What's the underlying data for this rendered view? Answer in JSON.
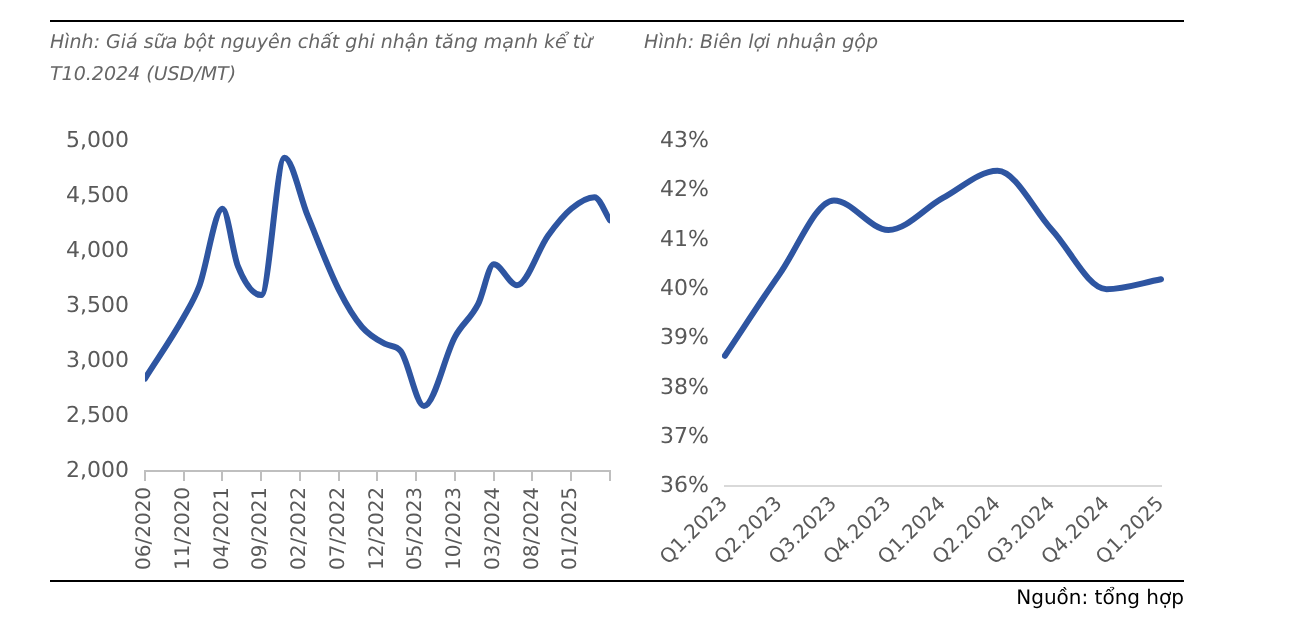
{
  "chart_data": [
    {
      "type": "line",
      "title": "Hình: Giá sữa bột nguyên chất ghi nhận tăng mạnh kể từ T10.2024 (USD/MT)",
      "color": "#2e55a1",
      "marker": "none",
      "x": [
        "2020-06",
        "2020-11",
        "2021-01",
        "2021-04",
        "2021-06",
        "2021-09",
        "2021-12",
        "2022-03",
        "2022-07",
        "2022-10",
        "2023-01",
        "2023-03",
        "2023-06",
        "2023-10",
        "2024-01",
        "2024-03",
        "2024-06",
        "2024-10",
        "2025-01",
        "2025-04",
        "2025-06"
      ],
      "values": [
        2840,
        3400,
        3680,
        4385,
        3860,
        3600,
        4850,
        4320,
        3650,
        3310,
        3155,
        3090,
        2590,
        3220,
        3520,
        3880,
        3690,
        4140,
        4385,
        4490,
        4280
      ],
      "xlim": [
        "2020-06",
        "2025-06"
      ],
      "xticks": [
        {
          "value": "2020-06",
          "label": "06/2020"
        },
        {
          "value": "2020-11",
          "label": "11/2020"
        },
        {
          "value": "2021-04",
          "label": "04/2021"
        },
        {
          "value": "2021-09",
          "label": "09/2021"
        },
        {
          "value": "2022-02",
          "label": "02/2022"
        },
        {
          "value": "2022-07",
          "label": "07/2022"
        },
        {
          "value": "2022-12",
          "label": "12/2022"
        },
        {
          "value": "2023-05",
          "label": "05/2023"
        },
        {
          "value": "2023-10",
          "label": "10/2023"
        },
        {
          "value": "2024-03",
          "label": "03/2024"
        },
        {
          "value": "2024-08",
          "label": "08/2024"
        },
        {
          "value": "2025-01",
          "label": "01/2025"
        },
        {
          "value": "2025-06",
          "label": null
        }
      ],
      "ylim": [
        2000,
        5000
      ],
      "yticks": [
        {
          "value": 2000,
          "label": "2,000"
        },
        {
          "value": 2500,
          "label": "2,500"
        },
        {
          "value": 3000,
          "label": "3,000"
        },
        {
          "value": 3500,
          "label": "3,500"
        },
        {
          "value": 4000,
          "label": "4,000"
        },
        {
          "value": 4500,
          "label": "4,500"
        },
        {
          "value": 5000,
          "label": "5,000"
        }
      ]
    },
    {
      "type": "line",
      "title": "Hình: Biên lợi nhuận gộp",
      "color": "#2e55a1",
      "marker": "none",
      "categories": [
        "Q1.2023",
        "Q2.2023",
        "Q3.2023",
        "Q4.2023",
        "Q1.2024",
        "Q2.2024",
        "Q3.2024",
        "Q4.2024",
        "Q1.2025"
      ],
      "values": [
        38.65,
        40.3,
        41.8,
        41.2,
        41.85,
        42.4,
        41.2,
        40.0,
        40.2
      ],
      "ylim": [
        36,
        43
      ],
      "yticks": [
        {
          "value": 36,
          "label": "36%"
        },
        {
          "value": 37,
          "label": "37%"
        },
        {
          "value": 38,
          "label": "38%"
        },
        {
          "value": 39,
          "label": "39%"
        },
        {
          "value": 40,
          "label": "40%"
        },
        {
          "value": 41,
          "label": "41%"
        },
        {
          "value": 42,
          "label": "42%"
        },
        {
          "value": 43,
          "label": "43%"
        }
      ],
      "annotations": [
        "Nguồn: tổng hợp"
      ]
    }
  ]
}
